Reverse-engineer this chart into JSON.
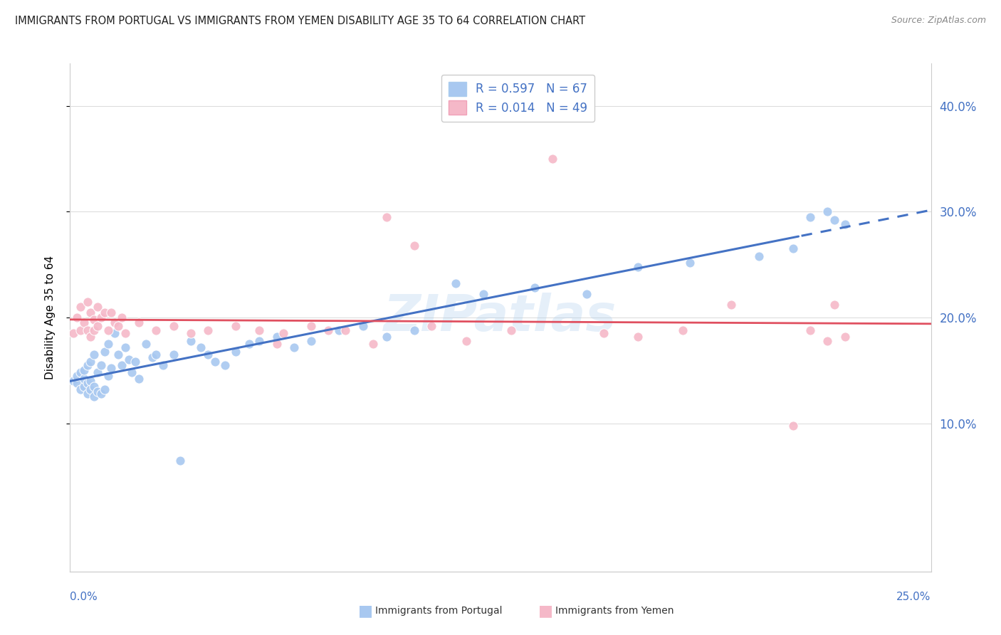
{
  "title": "IMMIGRANTS FROM PORTUGAL VS IMMIGRANTS FROM YEMEN DISABILITY AGE 35 TO 64 CORRELATION CHART",
  "source": "Source: ZipAtlas.com",
  "ylabel": "Disability Age 35 to 64",
  "ytick_labels": [
    "10.0%",
    "20.0%",
    "30.0%",
    "40.0%"
  ],
  "ytick_values": [
    0.1,
    0.2,
    0.3,
    0.4
  ],
  "xrange": [
    0.0,
    0.25
  ],
  "yrange": [
    -0.04,
    0.44
  ],
  "color_portugal": "#a8c8f0",
  "color_yemen": "#f5b8c8",
  "trendline_portugal_color": "#4472c4",
  "trendline_yemen_color": "#e05060",
  "watermark": "ZIPatlas",
  "portugal_R": 0.597,
  "portugal_N": 67,
  "yemen_R": 0.014,
  "yemen_N": 49,
  "portugal_scatter_x": [
    0.001,
    0.002,
    0.002,
    0.003,
    0.003,
    0.004,
    0.004,
    0.004,
    0.005,
    0.005,
    0.005,
    0.006,
    0.006,
    0.006,
    0.007,
    0.007,
    0.007,
    0.008,
    0.008,
    0.009,
    0.009,
    0.01,
    0.01,
    0.011,
    0.011,
    0.012,
    0.013,
    0.014,
    0.015,
    0.016,
    0.017,
    0.018,
    0.019,
    0.02,
    0.022,
    0.024,
    0.025,
    0.027,
    0.03,
    0.032,
    0.035,
    0.038,
    0.04,
    0.042,
    0.045,
    0.048,
    0.052,
    0.055,
    0.06,
    0.065,
    0.07,
    0.078,
    0.085,
    0.092,
    0.1,
    0.112,
    0.12,
    0.135,
    0.15,
    0.165,
    0.18,
    0.2,
    0.21,
    0.215,
    0.22,
    0.222,
    0.225
  ],
  "portugal_scatter_y": [
    0.14,
    0.138,
    0.145,
    0.132,
    0.148,
    0.135,
    0.142,
    0.15,
    0.128,
    0.138,
    0.155,
    0.132,
    0.14,
    0.158,
    0.125,
    0.135,
    0.165,
    0.13,
    0.148,
    0.128,
    0.155,
    0.132,
    0.168,
    0.175,
    0.145,
    0.152,
    0.185,
    0.165,
    0.155,
    0.172,
    0.16,
    0.148,
    0.158,
    0.142,
    0.175,
    0.162,
    0.165,
    0.155,
    0.165,
    0.065,
    0.178,
    0.172,
    0.165,
    0.158,
    0.155,
    0.168,
    0.175,
    0.178,
    0.182,
    0.172,
    0.178,
    0.188,
    0.192,
    0.182,
    0.188,
    0.232,
    0.222,
    0.228,
    0.222,
    0.248,
    0.252,
    0.258,
    0.265,
    0.295,
    0.3,
    0.292,
    0.288
  ],
  "yemen_scatter_x": [
    0.001,
    0.002,
    0.003,
    0.003,
    0.004,
    0.005,
    0.005,
    0.006,
    0.006,
    0.007,
    0.007,
    0.008,
    0.008,
    0.009,
    0.01,
    0.011,
    0.012,
    0.013,
    0.014,
    0.015,
    0.016,
    0.02,
    0.025,
    0.03,
    0.035,
    0.04,
    0.048,
    0.055,
    0.062,
    0.07,
    0.08,
    0.092,
    0.1,
    0.115,
    0.128,
    0.14,
    0.155,
    0.165,
    0.178,
    0.192,
    0.21,
    0.215,
    0.22,
    0.222,
    0.225,
    0.06,
    0.075,
    0.088,
    0.105
  ],
  "yemen_scatter_y": [
    0.185,
    0.2,
    0.188,
    0.21,
    0.195,
    0.215,
    0.188,
    0.205,
    0.182,
    0.198,
    0.188,
    0.21,
    0.192,
    0.2,
    0.205,
    0.188,
    0.205,
    0.195,
    0.192,
    0.2,
    0.185,
    0.195,
    0.188,
    0.192,
    0.185,
    0.188,
    0.192,
    0.188,
    0.185,
    0.192,
    0.188,
    0.295,
    0.268,
    0.178,
    0.188,
    0.35,
    0.185,
    0.182,
    0.188,
    0.212,
    0.098,
    0.188,
    0.178,
    0.212,
    0.182,
    0.175,
    0.188,
    0.175,
    0.192
  ]
}
